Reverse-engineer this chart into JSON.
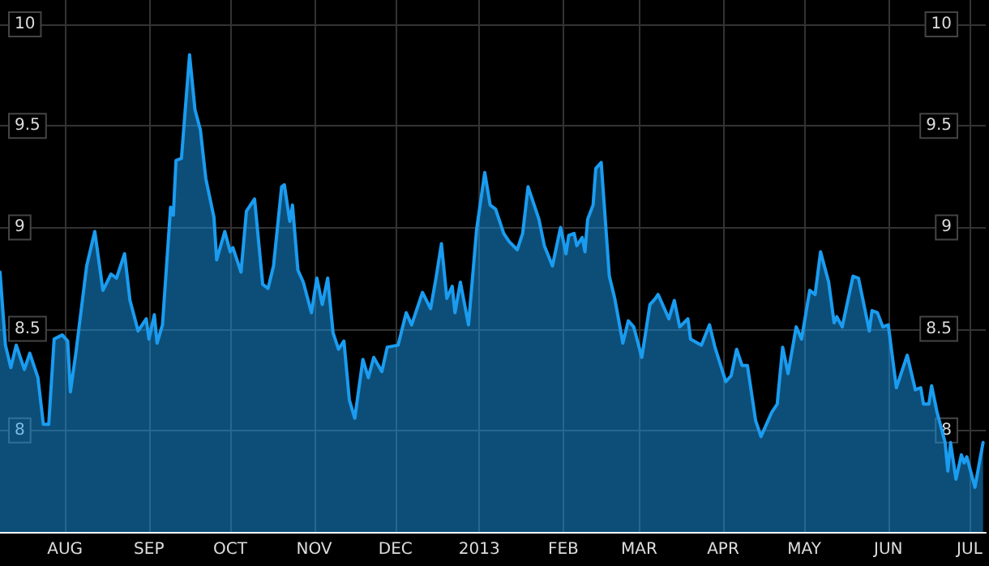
{
  "chart_data": {
    "type": "area",
    "color": "#1a9cf0",
    "grid": true,
    "marker": "none",
    "xlim": [
      "2012-07-08",
      "2013-07-07"
    ],
    "xticks": [
      {
        "value": "2012-08-01",
        "label": "AUG"
      },
      {
        "value": "2012-09-01",
        "label": "SEP"
      },
      {
        "value": "2012-10-01",
        "label": "OCT"
      },
      {
        "value": "2012-11-01",
        "label": "NOV"
      },
      {
        "value": "2012-12-01",
        "label": "DEC"
      },
      {
        "value": "2013-01-01",
        "label": "2013"
      },
      {
        "value": "2013-02-01",
        "label": "FEB"
      },
      {
        "value": "2013-03-01",
        "label": "MAR"
      },
      {
        "value": "2013-04-01",
        "label": "APR"
      },
      {
        "value": "2013-05-01",
        "label": "MAY"
      },
      {
        "value": "2013-06-01",
        "label": "JUN"
      },
      {
        "value": "2013-07-01",
        "label": "JUL"
      }
    ],
    "ylim": [
      7.5,
      10.12
    ],
    "yticks": [
      8,
      8.5,
      9,
      9.5,
      10
    ],
    "y2lim": [
      7.5,
      10.12
    ],
    "y2ticks": [
      8,
      8.5,
      9,
      9.5,
      10
    ],
    "x": [
      "2012-07-08",
      "2012-07-10",
      "2012-07-12",
      "2012-07-14",
      "2012-07-17",
      "2012-07-19",
      "2012-07-22",
      "2012-07-24",
      "2012-07-26",
      "2012-07-28",
      "2012-07-31",
      "2012-08-02",
      "2012-08-03",
      "2012-08-05",
      "2012-08-09",
      "2012-08-12",
      "2012-08-15",
      "2012-08-18",
      "2012-08-20",
      "2012-08-23",
      "2012-08-25",
      "2012-08-28",
      "2012-08-31",
      "2012-09-01",
      "2012-09-03",
      "2012-09-04",
      "2012-09-06",
      "2012-09-09",
      "2012-09-10",
      "2012-09-11",
      "2012-09-13",
      "2012-09-16",
      "2012-09-18",
      "2012-09-20",
      "2012-09-22",
      "2012-09-25",
      "2012-09-26",
      "2012-09-29",
      "2012-10-01",
      "2012-10-02",
      "2012-10-05",
      "2012-10-07",
      "2012-10-10",
      "2012-10-13",
      "2012-10-15",
      "2012-10-17",
      "2012-10-20",
      "2012-10-21",
      "2012-10-23",
      "2012-10-24",
      "2012-10-26",
      "2012-10-28",
      "2012-10-31",
      "2012-11-02",
      "2012-11-04",
      "2012-11-06",
      "2012-11-08",
      "2012-11-10",
      "2012-11-12",
      "2012-11-14",
      "2012-11-16",
      "2012-11-19",
      "2012-11-21",
      "2012-11-23",
      "2012-11-26",
      "2012-11-28",
      "2012-12-02",
      "2012-12-05",
      "2012-12-07",
      "2012-12-11",
      "2012-12-14",
      "2012-12-16",
      "2012-12-18",
      "2012-12-20",
      "2012-12-22",
      "2012-12-23",
      "2012-12-25",
      "2012-12-28",
      "2012-12-31",
      "2013-01-03",
      "2013-01-05",
      "2013-01-07",
      "2013-01-10",
      "2013-01-12",
      "2013-01-15",
      "2013-01-17",
      "2013-01-19",
      "2013-01-23",
      "2013-01-25",
      "2013-01-28",
      "2013-01-31",
      "2013-02-02",
      "2013-02-03",
      "2013-02-05",
      "2013-02-06",
      "2013-02-08",
      "2013-02-09",
      "2013-02-10",
      "2013-02-12",
      "2013-02-13",
      "2013-02-15",
      "2013-02-18",
      "2013-02-20",
      "2013-02-23",
      "2013-02-25",
      "2013-02-27",
      "2013-03-02",
      "2013-03-05",
      "2013-03-07",
      "2013-03-08",
      "2013-03-12",
      "2013-03-14",
      "2013-03-16",
      "2013-03-19",
      "2013-03-20",
      "2013-03-24",
      "2013-03-27",
      "2013-03-29",
      "2013-04-02",
      "2013-04-04",
      "2013-04-06",
      "2013-04-08",
      "2013-04-10",
      "2013-04-13",
      "2013-04-15",
      "2013-04-19",
      "2013-04-21",
      "2013-04-23",
      "2013-04-25",
      "2013-04-28",
      "2013-04-30",
      "2013-05-03",
      "2013-05-05",
      "2013-05-07",
      "2013-05-10",
      "2013-05-12",
      "2013-05-13",
      "2013-05-15",
      "2013-05-19",
      "2013-05-21",
      "2013-05-25",
      "2013-05-26",
      "2013-05-28",
      "2013-05-30",
      "2013-06-01",
      "2013-06-04",
      "2013-06-08",
      "2013-06-11",
      "2013-06-13",
      "2013-06-14",
      "2013-06-16",
      "2013-06-17",
      "2013-06-19",
      "2013-06-22",
      "2013-06-23",
      "2013-06-24",
      "2013-06-26",
      "2013-06-28",
      "2013-06-29",
      "2013-06-30",
      "2013-07-03",
      "2013-07-06"
    ],
    "values": [
      8.78,
      8.42,
      8.31,
      8.42,
      8.3,
      8.38,
      8.26,
      8.03,
      8.03,
      8.45,
      8.47,
      8.44,
      8.19,
      8.38,
      8.81,
      8.98,
      8.69,
      8.77,
      8.75,
      8.87,
      8.64,
      8.49,
      8.55,
      8.45,
      8.57,
      8.43,
      8.52,
      9.1,
      9.06,
      9.33,
      9.34,
      9.85,
      9.58,
      9.48,
      9.24,
      9.05,
      8.84,
      8.98,
      8.88,
      8.9,
      8.78,
      9.08,
      9.14,
      8.72,
      8.7,
      8.81,
      9.2,
      9.21,
      9.03,
      9.11,
      8.79,
      8.73,
      8.58,
      8.75,
      8.62,
      8.75,
      8.48,
      8.4,
      8.44,
      8.15,
      8.06,
      8.35,
      8.26,
      8.36,
      8.29,
      8.41,
      8.42,
      8.58,
      8.52,
      8.68,
      8.6,
      8.75,
      8.92,
      8.65,
      8.71,
      8.58,
      8.73,
      8.52,
      8.99,
      9.27,
      9.11,
      9.09,
      8.97,
      8.93,
      8.89,
      8.97,
      9.2,
      9.04,
      8.91,
      8.81,
      9.0,
      8.87,
      8.96,
      8.97,
      8.91,
      8.95,
      8.88,
      9.04,
      9.11,
      9.29,
      9.32,
      8.76,
      8.65,
      8.43,
      8.54,
      8.51,
      8.36,
      8.62,
      8.65,
      8.67,
      8.55,
      8.64,
      8.51,
      8.55,
      8.45,
      8.42,
      8.52,
      8.41,
      8.24,
      8.27,
      8.4,
      8.32,
      8.32,
      8.05,
      7.97,
      8.09,
      8.13,
      8.41,
      8.28,
      8.51,
      8.45,
      8.69,
      8.67,
      8.88,
      8.73,
      8.53,
      8.56,
      8.51,
      8.76,
      8.75,
      8.49,
      8.59,
      8.58,
      8.51,
      8.52,
      8.21,
      8.37,
      8.2,
      8.21,
      8.13,
      8.13,
      8.22,
      8.09,
      7.94,
      7.8,
      7.94,
      7.76,
      7.88,
      7.84,
      7.87,
      7.72,
      7.94
    ]
  }
}
